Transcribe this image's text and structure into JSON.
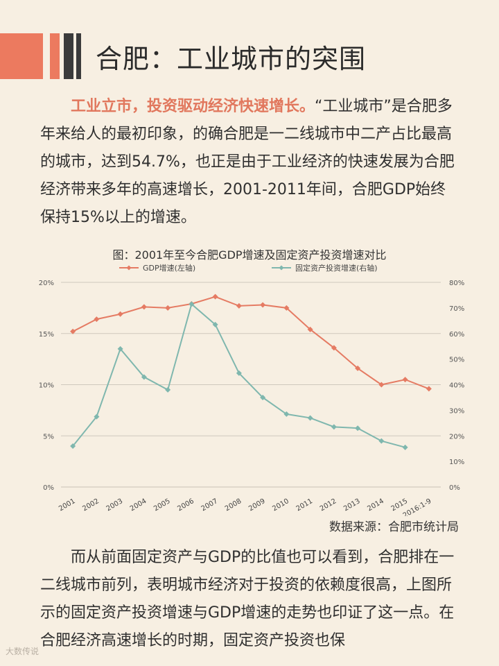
{
  "header": {
    "title": "合肥：工业城市的突围"
  },
  "intro": {
    "highlight": "工业立市，投资驱动经济快速增长。",
    "body": "“工业城市”是合肥多年来给人的最初印象，的确合肥是一二线城市中二产占比最高的城市，达到54.7%，也正是由于工业经济的快速发展为合肥经济带来多年的高速增长，2001-2011年间，合肥GDP始终保持15%以上的增速。"
  },
  "figure_title": "图：2001年至今合肥GDP增速及固定资产投资增速对比",
  "chart_data": {
    "type": "line",
    "categories": [
      "2001",
      "2002",
      "2003",
      "2004",
      "2005",
      "2006",
      "2007",
      "2008",
      "2009",
      "2010",
      "2011",
      "2012",
      "2013",
      "2014",
      "2015",
      "2016:1-9"
    ],
    "series": [
      {
        "name": "GDP增速(左轴)",
        "axis": "left",
        "color": "#e57b63",
        "values": [
          15.2,
          16.4,
          16.9,
          17.6,
          17.5,
          17.9,
          18.6,
          17.7,
          17.8,
          17.5,
          15.4,
          13.6,
          11.6,
          10.0,
          10.5,
          9.6
        ]
      },
      {
        "name": "固定资产投资增速(右轴)",
        "axis": "right",
        "color": "#7fb7ae",
        "values": [
          16,
          27.5,
          54,
          43,
          38,
          71.5,
          63.5,
          44.5,
          35,
          28.5,
          27,
          23.5,
          23,
          18,
          15.5,
          null
        ]
      }
    ],
    "left_axis": {
      "min": 0,
      "max": 20,
      "ticks": [
        "0%",
        "5%",
        "10%",
        "15%",
        "20%"
      ]
    },
    "right_axis": {
      "min": 0,
      "max": 80,
      "ticks": [
        "0%",
        "10%",
        "20%",
        "30%",
        "40%",
        "50%",
        "60%",
        "70%",
        "80%"
      ]
    },
    "grid": true,
    "legend_position": "top"
  },
  "source": "数据来源：合肥市统计局",
  "outro": "而从前面固定资产与GDP的比值也可以看到，合肥排在一二线城市前列，表明城市经济对于投资的依赖度很高，上图所示的固定资产投资增速与GDP增速的走势也印证了这一点。在合肥经济高速增长的时期，固定资产投资也保",
  "watermark": "大数传说"
}
